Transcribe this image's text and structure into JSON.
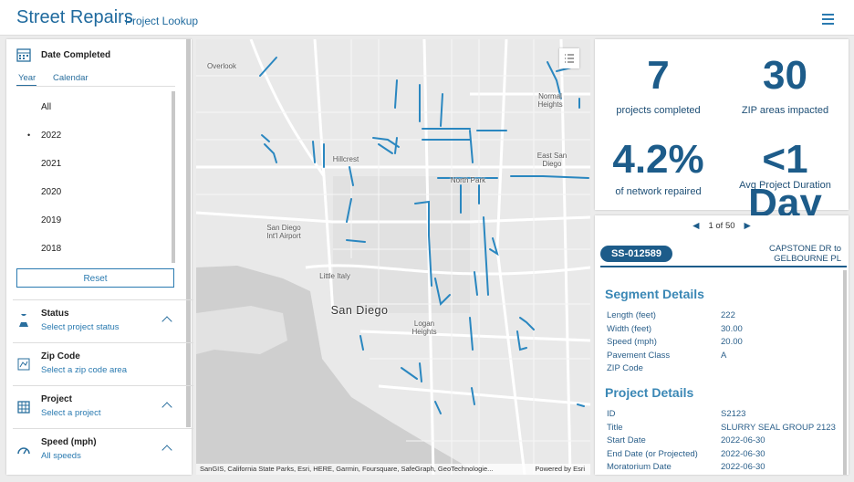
{
  "header": {
    "title": "Street Repairs",
    "subtitle": "Project Lookup"
  },
  "filters": {
    "date": {
      "title": "Date Completed",
      "tabs": [
        "Year",
        "Calendar"
      ],
      "years": [
        "All",
        "2022",
        "2021",
        "2020",
        "2019",
        "2018"
      ],
      "reset": "Reset"
    },
    "items": [
      {
        "title": "Status",
        "hint": "Select project status"
      },
      {
        "title": "Zip Code",
        "hint": "Select a zip code area"
      },
      {
        "title": "Project",
        "hint": "Select a project"
      },
      {
        "title": "Speed (mph)",
        "hint": "All speeds"
      }
    ]
  },
  "map": {
    "labels": [
      "Overlook",
      "Normal\nHeights",
      "Hillcrest",
      "East San\nDiego",
      "North Park",
      "San Diego\nInt'l Airport",
      "Little Italy",
      "San Diego",
      "Logan\nHeights"
    ],
    "attribution": "SanGIS, California State Parks, Esri, HERE, Garmin, Foursquare, SafeGraph, GeoTechnologie...",
    "powered_by": "Powered by Esri"
  },
  "stats": [
    {
      "value": "7",
      "label": "projects completed"
    },
    {
      "value": "30",
      "label": "ZIP areas impacted"
    },
    {
      "value": "4.2%",
      "label": "of network repaired"
    },
    {
      "value": "<1 Day",
      "label": "Avg Project Duration"
    }
  ],
  "details": {
    "pager": "1 of 50",
    "id": "SS-012589",
    "location": "CAPSTONE DR to GELBOURNE PL",
    "sections": [
      {
        "title": "Segment Details",
        "rows": [
          {
            "label": "Length (feet)",
            "value": "222"
          },
          {
            "label": "Width (feet)",
            "value": "30.00"
          },
          {
            "label": "Speed (mph)",
            "value": "20.00"
          },
          {
            "label": "Pavement Class",
            "value": "A"
          },
          {
            "label": "ZIP Code"
          }
        ]
      },
      {
        "title": "Project Details",
        "rows": [
          {
            "label": "ID",
            "value": "S2123"
          },
          {
            "label": "Title",
            "value": "SLURRY SEAL GROUP 2123"
          },
          {
            "label": "Start Date",
            "value": "2022-06-30"
          },
          {
            "label": "End Date (or Projected)",
            "value": "2022-06-30"
          },
          {
            "label": "Moratorium Date",
            "value": "2022-06-30"
          }
        ]
      }
    ]
  }
}
